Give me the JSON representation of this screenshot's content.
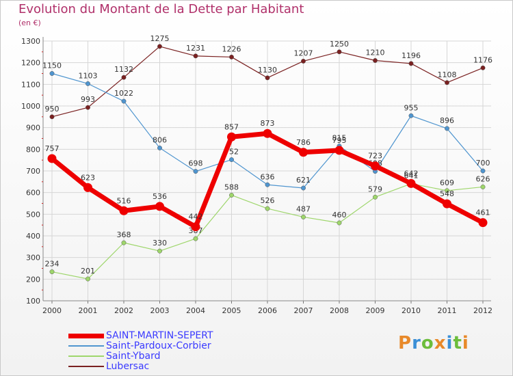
{
  "title": "Evolution du Montant de la Dette par Habitant",
  "subtitle": "(en €)",
  "logo": "Proxiti",
  "colors": {
    "title": "#b0306a",
    "legend_text": "#3a3aff",
    "grid": "#d6d6d6"
  },
  "chart_data": {
    "type": "line",
    "title": "Evolution du Montant de la Dette par Habitant",
    "ylabel": "(en €)",
    "ylim": [
      100,
      1300
    ],
    "yticks": [
      100,
      200,
      300,
      400,
      500,
      600,
      700,
      800,
      900,
      1000,
      1100,
      1200,
      1300
    ],
    "grid": true,
    "legend_position": "bottom-left",
    "x": [
      "2000",
      "2001",
      "2002",
      "2003",
      "2004",
      "2005",
      "2006",
      "2007",
      "2008",
      "2009",
      "2010",
      "2011",
      "2012"
    ],
    "series": [
      {
        "name": "SAINT-MARTIN-SEPERT",
        "color": "#ee0000",
        "values": [
          757,
          623,
          516,
          536,
          442,
          857,
          873,
          786,
          795,
          723,
          642,
          548,
          461
        ]
      },
      {
        "name": "Saint-Pardoux-Corbier",
        "color": "#4f95cf",
        "values": [
          1150,
          1103,
          1022,
          806,
          698,
          752,
          636,
          621,
          815,
          698,
          955,
          896,
          700
        ]
      },
      {
        "name": "Saint-Ybard",
        "color": "#9ed66b",
        "values": [
          234,
          201,
          368,
          330,
          387,
          588,
          526,
          487,
          460,
          579,
          641,
          609,
          626
        ]
      },
      {
        "name": "Lubersac",
        "color": "#7a2121",
        "values": [
          950,
          993,
          1132,
          1275,
          1231,
          1226,
          1130,
          1207,
          1250,
          1210,
          1196,
          1108,
          1176
        ]
      }
    ]
  }
}
